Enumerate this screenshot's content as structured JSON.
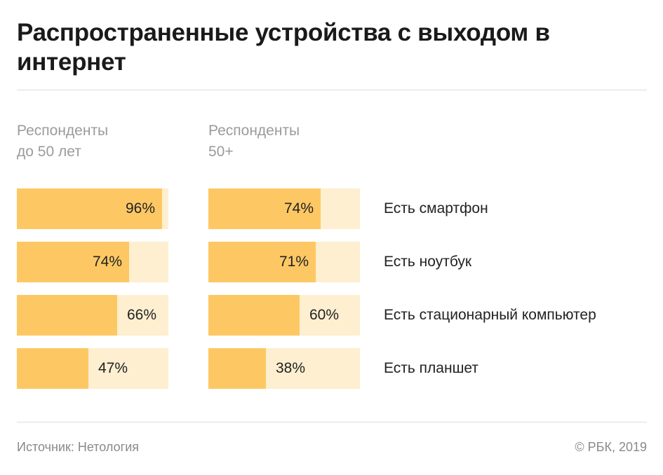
{
  "title": "Распространенные устройства с выходом в интернет",
  "colors": {
    "fill": "#fdc864",
    "track": "#fdefcf"
  },
  "groups": [
    {
      "label_line1": "Респонденты",
      "label_line2": "до 50 лет"
    },
    {
      "label_line1": "Респонденты",
      "label_line2": "50+"
    }
  ],
  "chart_data": {
    "type": "bar",
    "orientation": "horizontal",
    "categories": [
      "Есть смартфон",
      "Есть ноутбук",
      "Есть стационарный компьютер",
      "Есть планшет"
    ],
    "series": [
      {
        "name": "Респонденты до 50 лет",
        "values": [
          96,
          74,
          66,
          47
        ],
        "labels": [
          "96%",
          "74%",
          "66%",
          "47%"
        ]
      },
      {
        "name": "Респонденты 50+",
        "values": [
          74,
          71,
          60,
          38
        ],
        "labels": [
          "74%",
          "71%",
          "60%",
          "38%"
        ]
      }
    ],
    "xlim": [
      0,
      100
    ],
    "unit": "%"
  },
  "footer": {
    "source": "Источник: Нетология",
    "copyright": "© РБК, 2019"
  }
}
